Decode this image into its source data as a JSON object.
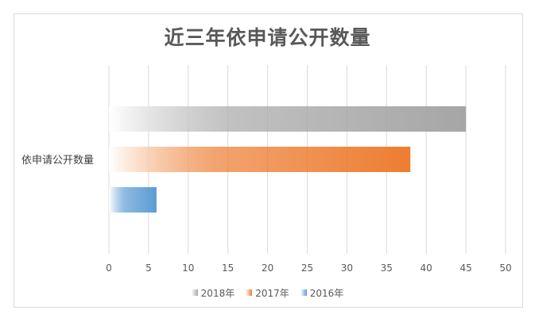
{
  "chart_data": {
    "type": "bar",
    "orientation": "horizontal",
    "title": "近三年依申请公开数量",
    "categories": [
      "依申请公开数量"
    ],
    "series": [
      {
        "name": "2018年",
        "values": [
          45
        ],
        "color": "#a6a6a6"
      },
      {
        "name": "2017年",
        "values": [
          38
        ],
        "color": "#ed7d31"
      },
      {
        "name": "2016年",
        "values": [
          6
        ],
        "color": "#5b9bd5"
      }
    ],
    "xlim": [
      0,
      50
    ],
    "xticks": [
      "0",
      "5",
      "10",
      "15",
      "20",
      "25",
      "30",
      "35",
      "40",
      "45",
      "50"
    ],
    "grid": true,
    "legend_position": "bottom",
    "fill_style": "gradient fading to white at axis"
  }
}
